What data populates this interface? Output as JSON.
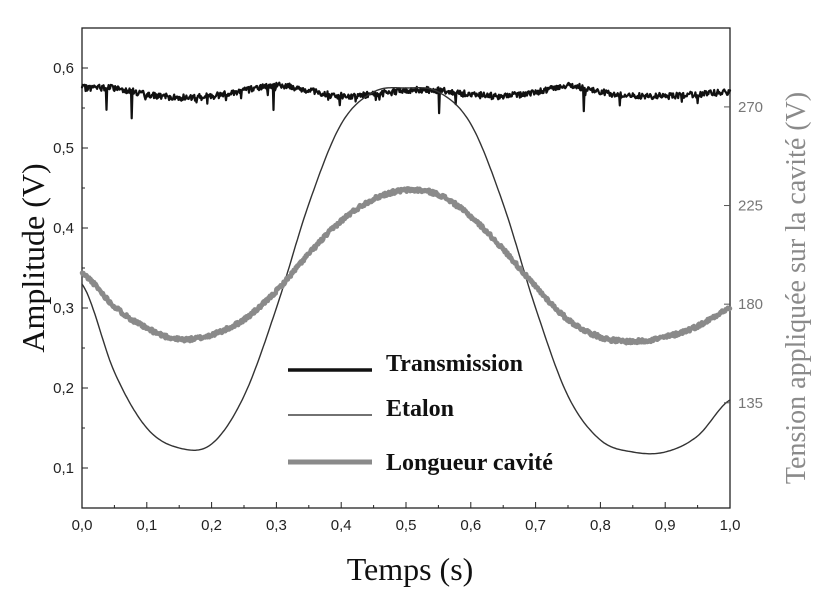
{
  "chart_data": {
    "type": "line",
    "xlabel": "Temps (s)",
    "ylabel": "Amplitude (V)",
    "y2label": "Tension appliquée sur la cavité (V)",
    "xlim": [
      0.0,
      1.0
    ],
    "ylim": [
      0.05,
      0.65
    ],
    "y2lim": [
      87,
      306
    ],
    "x_ticks": [
      "0,0",
      "0,1",
      "0,2",
      "0,3",
      "0,4",
      "0,5",
      "0,6",
      "0,7",
      "0,8",
      "0,9",
      "1,0"
    ],
    "y_ticks": [
      "0,1",
      "0,2",
      "0,3",
      "0,4",
      "0,5",
      "0,6"
    ],
    "y2_ticks": [
      "135",
      "180",
      "225",
      "270"
    ],
    "grid": false,
    "legend_position": "bottom-center",
    "series": [
      {
        "name": "Transmission",
        "axis": "left",
        "color": "#111111",
        "x": [
          0.0,
          0.05,
          0.1,
          0.15,
          0.2,
          0.25,
          0.3,
          0.35,
          0.4,
          0.45,
          0.5,
          0.55,
          0.6,
          0.65,
          0.7,
          0.75,
          0.8,
          0.85,
          0.9,
          0.95,
          1.0
        ],
        "y": [
          0.575,
          0.575,
          0.567,
          0.563,
          0.565,
          0.572,
          0.578,
          0.572,
          0.565,
          0.567,
          0.572,
          0.572,
          0.567,
          0.565,
          0.57,
          0.578,
          0.57,
          0.565,
          0.565,
          0.567,
          0.57
        ]
      },
      {
        "name": "Etalon",
        "axis": "left",
        "color": "#333333",
        "x": [
          0.0,
          0.05,
          0.1,
          0.15,
          0.2,
          0.25,
          0.3,
          0.35,
          0.4,
          0.45,
          0.5,
          0.55,
          0.6,
          0.65,
          0.7,
          0.75,
          0.8,
          0.85,
          0.9,
          0.95,
          1.0
        ],
        "y": [
          0.33,
          0.22,
          0.15,
          0.125,
          0.13,
          0.19,
          0.3,
          0.43,
          0.53,
          0.57,
          0.575,
          0.57,
          0.53,
          0.43,
          0.3,
          0.19,
          0.135,
          0.12,
          0.12,
          0.14,
          0.185
        ]
      },
      {
        "name": "Longueur cavité",
        "axis": "right",
        "color": "#8a8a8a",
        "x": [
          0.0,
          0.05,
          0.1,
          0.15,
          0.2,
          0.25,
          0.3,
          0.35,
          0.4,
          0.45,
          0.5,
          0.55,
          0.6,
          0.65,
          0.7,
          0.75,
          0.8,
          0.85,
          0.9,
          0.95,
          1.0
        ],
        "y": [
          194,
          179,
          169,
          164,
          166,
          173,
          186,
          203,
          218,
          228,
          232,
          230,
          220,
          205,
          188,
          173,
          165,
          163,
          165,
          170,
          178
        ]
      }
    ]
  }
}
